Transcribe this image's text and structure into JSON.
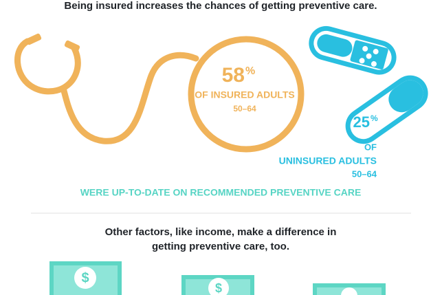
{
  "header": {
    "title": "Being insured increases the chances of getting preventive care."
  },
  "insured": {
    "number": "58",
    "unit": "%",
    "label": "OF INSURED ADULTS",
    "ages": "50–64"
  },
  "uninsured": {
    "number": "25",
    "unit": "%",
    "of": "OF",
    "label": "UNINSURED ADULTS",
    "ages": "50–64"
  },
  "caption": "WERE UP-TO-DATE ON RECOMMENDED PREVENTIVE CARE",
  "section": {
    "lines": [
      "Other factors, like income, make a difference in",
      "getting preventive care, too."
    ]
  }
}
